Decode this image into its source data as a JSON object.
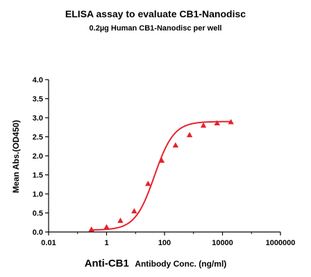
{
  "chart_data": {
    "type": "scatter",
    "title": "ELISA assay to evaluate CB1-Nanodisc",
    "subtitle": "0.2µg Human CB1-Nanodisc per well",
    "xlabel_main": "Anti-CB1",
    "xlabel_sub": "Antibody Conc. (ng/ml)",
    "ylabel": "Mean Abs.(OD450)",
    "xscale": "log",
    "xlim": [
      0.01,
      1000000
    ],
    "ylim": [
      0,
      4.0
    ],
    "xticks": [
      "0.01",
      "1",
      "100",
      "10000",
      "1000000"
    ],
    "xtick_values": [
      0.01,
      1,
      100,
      10000,
      1000000
    ],
    "yticks": [
      "0.0",
      "0.5",
      "1.0",
      "1.5",
      "2.0",
      "2.5",
      "3.0",
      "3.5",
      "4.0"
    ],
    "ytick_values": [
      0,
      0.5,
      1.0,
      1.5,
      2.0,
      2.5,
      3.0,
      3.5,
      4.0
    ],
    "series": [
      {
        "color": "#e8202a",
        "marker": "triangle",
        "points": [
          {
            "x": 0.3,
            "y": 0.07
          },
          {
            "x": 1.0,
            "y": 0.13
          },
          {
            "x": 3.0,
            "y": 0.3
          },
          {
            "x": 9.0,
            "y": 0.55
          },
          {
            "x": 27,
            "y": 1.27
          },
          {
            "x": 80,
            "y": 1.88
          },
          {
            "x": 240,
            "y": 2.28
          },
          {
            "x": 730,
            "y": 2.55
          },
          {
            "x": 2200,
            "y": 2.8
          },
          {
            "x": 6500,
            "y": 2.86
          },
          {
            "x": 19500,
            "y": 2.89
          }
        ],
        "fit": {
          "bottom": 0.05,
          "top": 2.9,
          "ec50": 45,
          "hill": 1.3
        }
      }
    ]
  }
}
